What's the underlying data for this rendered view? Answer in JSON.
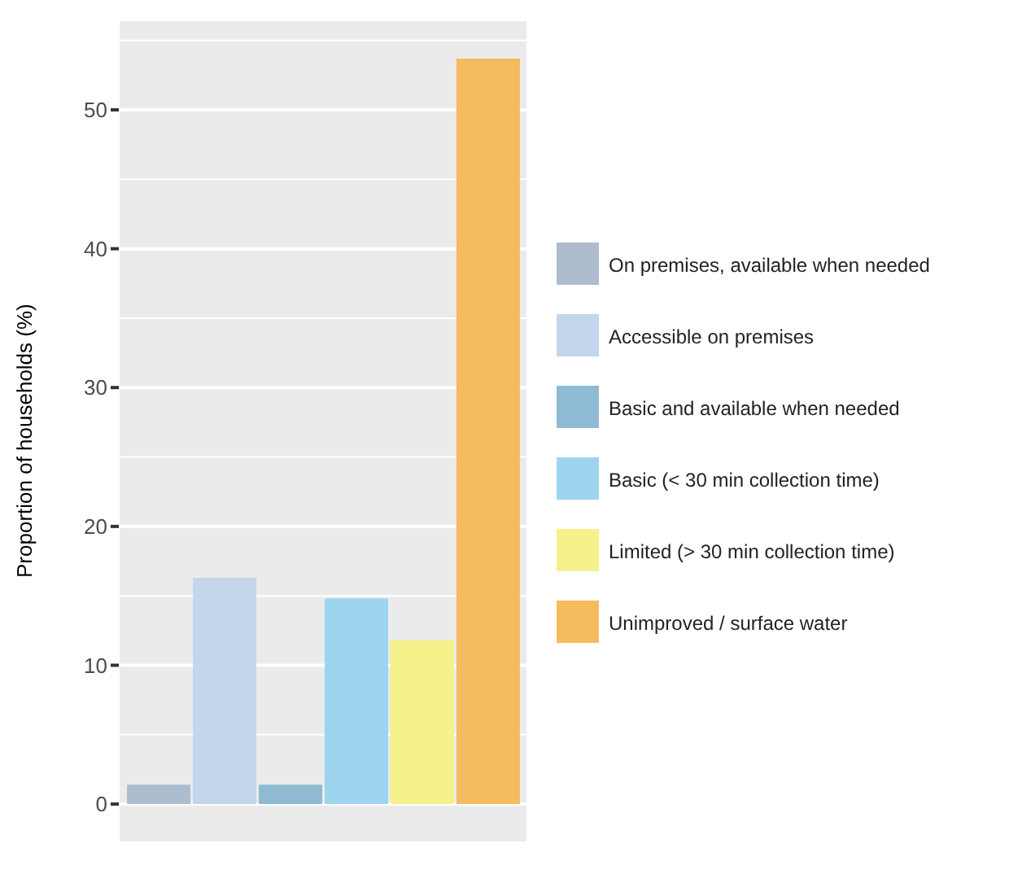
{
  "chart_data": {
    "type": "bar",
    "ylabel": "Proportion of households (%)",
    "categories": [
      null,
      null,
      null,
      null,
      null,
      null
    ],
    "stacked": true,
    "series": [
      {
        "name": "On premises, available when needed",
        "color": "#adbccf",
        "values": [
          1.4,
          null,
          null,
          null,
          null,
          null
        ]
      },
      {
        "name": "Accessible on premises",
        "color": "#c3d6eb",
        "values": [
          null,
          16.3,
          null,
          null,
          null,
          null
        ]
      },
      {
        "name": "Basic and available when needed",
        "color": "#8ebbd3",
        "values": [
          null,
          null,
          1.4,
          null,
          null,
          null
        ]
      },
      {
        "name": "Basic (< 30 min collection time)",
        "color": "#9dd5ef",
        "values": [
          null,
          null,
          null,
          14.8,
          null,
          null
        ]
      },
      {
        "name": "Limited (> 30 min collection time)",
        "color": "#f7f18b",
        "values": [
          null,
          null,
          null,
          null,
          11.8,
          null
        ]
      },
      {
        "name": "Unimproved / surface water",
        "color": "#f5bb5f",
        "values": [
          null,
          null,
          null,
          null,
          null,
          53.7
        ]
      }
    ],
    "ylim": [
      -2.69,
      56.39
    ],
    "yticks": [
      0,
      10,
      20,
      30,
      40,
      50
    ],
    "grid": true,
    "legend": "right",
    "tick_labels": "y"
  }
}
